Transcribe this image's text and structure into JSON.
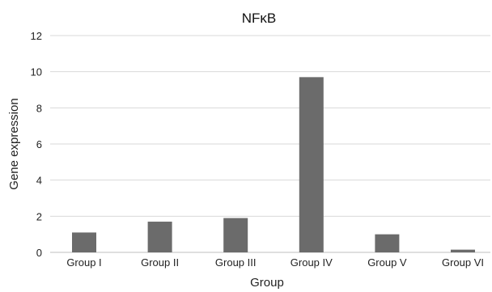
{
  "chart_data": {
    "type": "bar",
    "title": "NFκB",
    "xlabel": "Group",
    "ylabel": "Gene expression",
    "categories": [
      "Group I",
      "Group II",
      "Group III",
      "Group IV",
      "Group V",
      "Group VI"
    ],
    "values": [
      1.1,
      1.7,
      1.9,
      9.7,
      1.0,
      0.15
    ],
    "ylim": [
      0,
      12
    ],
    "yticks": [
      0,
      2,
      4,
      6,
      8,
      10,
      12
    ],
    "grid": true,
    "bar_color": "#6b6b6b"
  }
}
